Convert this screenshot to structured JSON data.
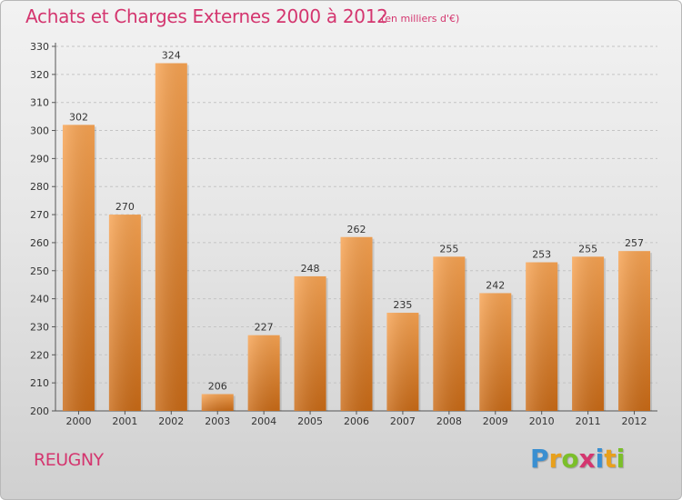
{
  "header": {
    "title": "Achats et Charges Externes 2000 à 2012",
    "subtitle": "(en milliers d'€)"
  },
  "commune": "REUGNY",
  "logo": {
    "letters": [
      "P",
      "r",
      "o",
      "x",
      "i",
      "t",
      "i"
    ],
    "colors": [
      "#3a8fd1",
      "#e8a01c",
      "#7bbf2a",
      "#d4366f",
      "#3a8fd1",
      "#e8a01c",
      "#7bbf2a"
    ]
  },
  "chart_data": {
    "type": "bar",
    "categories": [
      "2000",
      "2001",
      "2002",
      "2003",
      "2004",
      "2005",
      "2006",
      "2007",
      "2008",
      "2009",
      "2010",
      "2011",
      "2012"
    ],
    "values": [
      302,
      270,
      324,
      206,
      227,
      248,
      262,
      235,
      255,
      242,
      253,
      255,
      257
    ],
    "ylim": [
      200,
      330
    ],
    "yticks": [
      200,
      210,
      220,
      230,
      240,
      250,
      260,
      270,
      280,
      290,
      300,
      310,
      320,
      330
    ],
    "grid": true,
    "bar_color_top": "#f7a352",
    "bar_color_bottom": "#c96a16"
  }
}
